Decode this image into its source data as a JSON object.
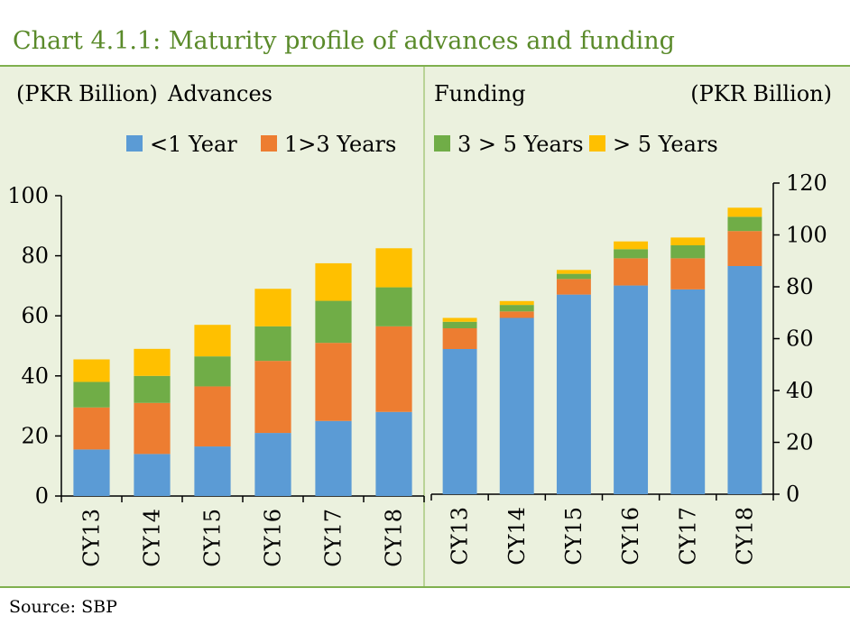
{
  "title": "Chart 4.1.1: Maturity profile of advances and funding",
  "source": "Source:  SBP",
  "colors": {
    "lt1": "#5b9bd5",
    "y1to3": "#ed7d31",
    "y3to5": "#70ad47",
    "gt5": "#ffc000",
    "panel_bg": "#ebf1de",
    "accent": "#5a8a2a"
  },
  "legend": {
    "lt1": "<1 Year",
    "y1to3": "1>3 Years",
    "y3to5": "3 > 5 Years",
    "gt5": "> 5 Years"
  },
  "chart_data": [
    {
      "type": "bar",
      "stacked": true,
      "title": "Advances",
      "unit_label": "(PKR Billion)",
      "categories": [
        "CY13",
        "CY14",
        "CY15",
        "CY16",
        "CY17",
        "CY18"
      ],
      "ylim": [
        0,
        100
      ],
      "yticks": [
        0,
        20,
        40,
        60,
        80,
        100
      ],
      "axis_side": "left",
      "series": [
        {
          "name": "<1 Year",
          "color": "#5b9bd5",
          "values": [
            15.5,
            14,
            16.5,
            21,
            25,
            28
          ]
        },
        {
          "name": "1>3 Years",
          "color": "#ed7d31",
          "values": [
            14,
            17,
            20,
            24,
            26,
            28.5
          ]
        },
        {
          "name": "3 > 5 Years",
          "color": "#70ad47",
          "values": [
            8.5,
            9,
            10,
            11.5,
            14,
            13
          ]
        },
        {
          "name": "> 5 Years",
          "color": "#ffc000",
          "values": [
            7.5,
            9,
            10.5,
            12.5,
            12.5,
            13
          ]
        }
      ]
    },
    {
      "type": "bar",
      "stacked": true,
      "title": "Funding",
      "unit_label": "(PKR Billion)",
      "categories": [
        "CY13",
        "CY14",
        "CY15",
        "CY16",
        "CY17",
        "CY18"
      ],
      "ylim": [
        0,
        120
      ],
      "yticks": [
        0,
        20,
        40,
        60,
        80,
        100,
        120
      ],
      "axis_side": "right",
      "series": [
        {
          "name": "<1 Year",
          "color": "#5b9bd5",
          "values": [
            56,
            68,
            77,
            80.5,
            79,
            88
          ]
        },
        {
          "name": "1>3 Years",
          "color": "#ed7d31",
          "values": [
            8,
            2.5,
            6,
            10.5,
            12,
            13.5
          ]
        },
        {
          "name": "3 > 5 Years",
          "color": "#70ad47",
          "values": [
            2.5,
            2.5,
            2,
            3.5,
            5,
            5.5
          ]
        },
        {
          "name": "> 5 Years",
          "color": "#ffc000",
          "values": [
            1.5,
            1.5,
            1.5,
            3,
            3,
            3.5
          ]
        }
      ]
    }
  ]
}
